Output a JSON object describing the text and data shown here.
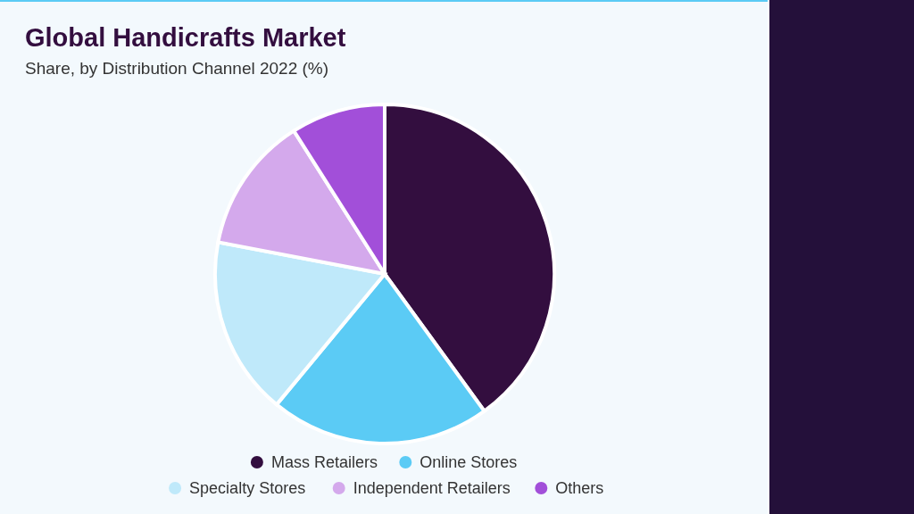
{
  "chart_data": {
    "type": "pie",
    "title": "Global Handicrafts Market",
    "subtitle": "Share, by Distribution Channel 2022 (%)",
    "categories": [
      "Mass Retailers",
      "Online Stores",
      "Specialty Stores",
      "Independent Retailers",
      "Others"
    ],
    "values": [
      40,
      21,
      17,
      13,
      9
    ],
    "colors": [
      "#330e3f",
      "#5bcbf5",
      "#bfe9fa",
      "#d4a9ec",
      "#a24fd9"
    ],
    "legend": "bottom"
  }
}
